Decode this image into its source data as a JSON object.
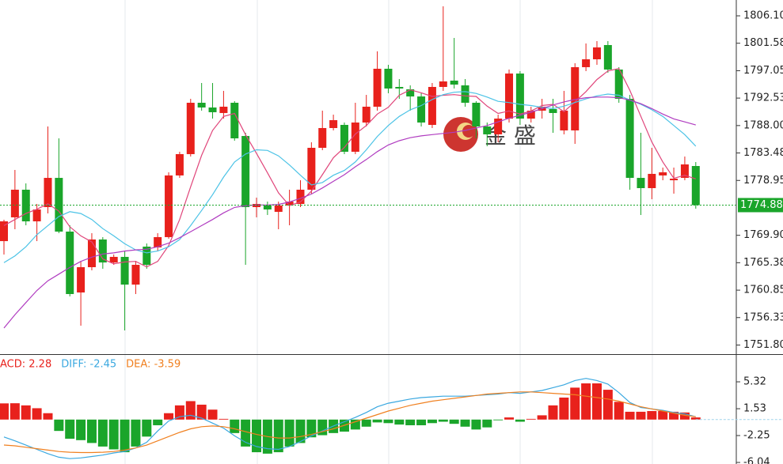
{
  "chart_data": [
    {
      "type": "candlestick",
      "up_color": "#e8211c",
      "down_color": "#1aa52a",
      "open": [
        1768.94,
        1772.86,
        1777.42,
        1772.2,
        1774.55,
        1779.37,
        1770.51,
        1760.47,
        1764.64,
        1769.21,
        1765.42,
        1766.34,
        1761.77,
        1768.03,
        1767.9,
        1769.6,
        1779.77,
        1783.29,
        1791.76,
        1790.98,
        1790.07,
        1791.76,
        1786.28,
        1774.55,
        1774.81,
        1773.77,
        1774.81,
        1775.07,
        1777.42,
        1784.33,
        1787.59,
        1788.11,
        1783.68,
        1788.5,
        1791.11,
        1797.37,
        1794.37,
        1793.98,
        1792.8,
        1788.11,
        1794.37,
        1795.41,
        1794.63,
        1791.76,
        1787.85,
        1786.55,
        1789.15,
        1796.58,
        1789.15,
        1790.46,
        1790.72,
        1787.2,
        1787.2,
        1797.63,
        1798.93,
        1801.28,
        1797.24,
        1792.41,
        1779.37,
        1777.68,
        1779.77,
        1778.98,
        1779.37,
        1781.33
      ],
      "high": [
        1772.46,
        1780.68,
        1778.46,
        1775.07,
        1787.85,
        1785.89,
        1771.55,
        1765.68,
        1770.25,
        1769.6,
        1766.73,
        1767.25,
        1765.68,
        1768.55,
        1770.25,
        1780.29,
        1783.68,
        1792.41,
        1795.02,
        1795.02,
        1793.72,
        1792.02,
        1786.81,
        1776.11,
        1775.46,
        1775.46,
        1777.42,
        1778.98,
        1785.24,
        1790.46,
        1789.8,
        1788.5,
        1791.76,
        1793.06,
        1800.24,
        1798.02,
        1795.67,
        1794.63,
        1793.33,
        1795.02,
        1807.67,
        1802.45,
        1795.67,
        1792.02,
        1788.5,
        1789.8,
        1797.24,
        1796.98,
        1791.11,
        1792.41,
        1792.41,
        1793.72,
        1798.28,
        1801.54,
        1801.93,
        1801.93,
        1797.63,
        1793.06,
        1786.81,
        1784.33,
        1781.07,
        1781.07,
        1782.89,
        1781.98
      ],
      "low": [
        1766.73,
        1770.9,
        1771.55,
        1768.94,
        1773.51,
        1770.25,
        1759.82,
        1754.99,
        1764.12,
        1764.38,
        1765.03,
        1754.21,
        1760.21,
        1764.38,
        1767.25,
        1769.34,
        1779.37,
        1782.89,
        1790.46,
        1789.15,
        1789.15,
        1785.5,
        1765.03,
        1772.86,
        1773.25,
        1770.9,
        1771.55,
        1774.55,
        1776.77,
        1783.94,
        1787.2,
        1783.29,
        1783.29,
        1787.85,
        1790.46,
        1793.33,
        1792.41,
        1790.46,
        1787.85,
        1787.59,
        1793.72,
        1794.11,
        1791.11,
        1785.89,
        1784.59,
        1785.24,
        1788.5,
        1788.11,
        1788.5,
        1789.15,
        1786.81,
        1786.55,
        1784.98,
        1796.98,
        1798.02,
        1796.71,
        1791.76,
        1777.42,
        1773.25,
        1775.85,
        1778.98,
        1776.77,
        1778.98,
        1774.29
      ],
      "close": [
        1772.2,
        1777.42,
        1772.2,
        1774.16,
        1779.37,
        1770.51,
        1760.21,
        1764.64,
        1769.21,
        1765.42,
        1766.34,
        1761.77,
        1765.03,
        1765.03,
        1769.6,
        1779.77,
        1783.29,
        1791.76,
        1790.98,
        1790.2,
        1791.11,
        1785.89,
        1774.55,
        1775.07,
        1774.16,
        1774.81,
        1775.46,
        1777.42,
        1784.33,
        1787.59,
        1788.89,
        1783.68,
        1788.5,
        1791.11,
        1797.37,
        1794.11,
        1794.11,
        1792.8,
        1788.5,
        1794.37,
        1795.28,
        1794.76,
        1791.76,
        1787.85,
        1786.55,
        1789.15,
        1796.58,
        1789.15,
        1790.46,
        1791.11,
        1790.07,
        1790.46,
        1797.63,
        1798.93,
        1800.89,
        1797.24,
        1792.41,
        1779.37,
        1777.68,
        1780.03,
        1780.29,
        1779.24,
        1781.59,
        1774.88
      ],
      "series": [
        {
          "color": "#e0457a",
          "values": [
            1771.5,
            1772.5,
            1773.5,
            1774.2,
            1775.1,
            1773.9,
            1771.3,
            1769.8,
            1768.8,
            1766.0,
            1765.2,
            1765.5,
            1765.6,
            1764.7,
            1765.6,
            1768.2,
            1772.5,
            1777.9,
            1783.1,
            1787.2,
            1789.5,
            1790.0,
            1786.5,
            1783.4,
            1780.2,
            1776.9,
            1774.8,
            1775.4,
            1777.2,
            1779.9,
            1782.7,
            1784.4,
            1786.6,
            1788.0,
            1789.9,
            1791.0,
            1793.0,
            1793.9,
            1793.4,
            1792.8,
            1793.0,
            1793.1,
            1792.9,
            1792.8,
            1791.2,
            1790.0,
            1790.4,
            1789.9,
            1790.4,
            1791.3,
            1791.5,
            1790.3,
            1791.9,
            1793.6,
            1795.6,
            1797.0,
            1797.4,
            1793.8,
            1789.5,
            1785.3,
            1782.0,
            1779.3,
            1779.8,
            1779.2
          ]
        },
        {
          "color": "#4cc3e6",
          "values": [
            1765.4,
            1766.5,
            1768.0,
            1770.0,
            1771.5,
            1773.0,
            1773.8,
            1773.5,
            1772.5,
            1771.0,
            1769.8,
            1768.5,
            1767.5,
            1767.0,
            1767.3,
            1768.0,
            1769.2,
            1771.5,
            1774.0,
            1776.6,
            1779.5,
            1782.0,
            1783.3,
            1784.0,
            1783.9,
            1783.0,
            1781.5,
            1779.8,
            1778.2,
            1778.6,
            1779.8,
            1780.6,
            1782.0,
            1784.0,
            1786.2,
            1788.0,
            1789.5,
            1790.6,
            1791.3,
            1792.3,
            1793.1,
            1793.5,
            1793.6,
            1793.3,
            1792.7,
            1792.0,
            1791.8,
            1791.5,
            1791.3,
            1791.0,
            1790.8,
            1791.2,
            1791.8,
            1792.4,
            1792.9,
            1793.2,
            1793.0,
            1792.2,
            1791.5,
            1790.6,
            1789.5,
            1788.0,
            1786.5,
            1784.6
          ]
        },
        {
          "color": "#b03cc0",
          "values": [
            1754.6,
            1756.8,
            1758.8,
            1760.8,
            1762.4,
            1763.5,
            1764.6,
            1765.6,
            1766.3,
            1766.8,
            1767.0,
            1767.3,
            1767.5,
            1767.6,
            1768.0,
            1768.6,
            1769.5,
            1770.5,
            1771.5,
            1772.5,
            1773.6,
            1774.5,
            1774.8,
            1774.9,
            1774.9,
            1775.0,
            1775.4,
            1776.0,
            1776.7,
            1777.7,
            1778.8,
            1779.9,
            1781.2,
            1782.4,
            1783.7,
            1784.8,
            1785.5,
            1786.0,
            1786.3,
            1786.5,
            1786.7,
            1786.9,
            1787.2,
            1787.6,
            1788.0,
            1788.6,
            1789.2,
            1789.7,
            1790.2,
            1790.8,
            1791.4,
            1791.9,
            1792.3,
            1792.6,
            1792.7,
            1792.7,
            1792.6,
            1792.2,
            1791.6,
            1790.8,
            1789.9,
            1789.1,
            1788.6,
            1788.1
          ]
        }
      ],
      "last_price": {
        "value": 1774.88,
        "label": "1774.88"
      },
      "ylim": [
        1750.3,
        1808.71
      ],
      "yticks": [
        {
          "value": 1806.1,
          "label": "1806.10"
        },
        {
          "value": 1801.58,
          "label": "1801.58"
        },
        {
          "value": 1797.05,
          "label": "1797.05"
        },
        {
          "value": 1792.53,
          "label": "1792.53"
        },
        {
          "value": 1788.0,
          "label": "1788.00"
        },
        {
          "value": 1783.48,
          "label": "1783.48"
        },
        {
          "value": 1778.95,
          "label": "1778.95"
        },
        {
          "value": 1769.9,
          "label": "1769.90"
        },
        {
          "value": 1765.38,
          "label": "1765.38"
        },
        {
          "value": 1760.85,
          "label": "1760.85"
        },
        {
          "value": 1756.33,
          "label": "1756.33"
        },
        {
          "value": 1751.8,
          "label": "1751.80"
        }
      ],
      "watermark": "金  盛"
    },
    {
      "type": "macd",
      "legend": [
        {
          "label": "ACD: 2.28",
          "color": "#e8211c"
        },
        {
          "label": "DIFF: -2.45",
          "color": "#3aa8e0"
        },
        {
          "label": "DEA: -3.59",
          "color": "#f08020"
        }
      ],
      "up_color": "#e8211c",
      "down_color": "#1aa52a",
      "values": [
        2.28,
        2.3,
        2.0,
        1.6,
        0.9,
        -1.6,
        -2.7,
        -2.9,
        -3.3,
        -3.8,
        -4.2,
        -4.6,
        -3.8,
        -2.4,
        -0.8,
        0.9,
        2.0,
        2.6,
        2.1,
        1.4,
        0.1,
        -1.9,
        -3.8,
        -4.6,
        -4.8,
        -4.6,
        -3.8,
        -3.3,
        -2.5,
        -2.2,
        -1.9,
        -1.7,
        -1.4,
        -1.0,
        -0.4,
        -0.5,
        -0.7,
        -0.8,
        -0.8,
        -0.5,
        -0.3,
        -0.6,
        -1.0,
        -1.4,
        -1.1,
        -0.1,
        0.3,
        -0.3,
        0.1,
        0.6,
        2.0,
        3.1,
        4.5,
        5.1,
        5.1,
        4.2,
        2.5,
        1.1,
        1.1,
        1.2,
        1.2,
        1.1,
        1.0,
        0.3
      ],
      "series": [
        {
          "color": "#3aa8e0",
          "values": [
            -2.45,
            -3.0,
            -3.6,
            -4.2,
            -4.8,
            -5.3,
            -5.5,
            -5.4,
            -5.2,
            -5.0,
            -4.7,
            -4.5,
            -4.0,
            -3.2,
            -1.6,
            -0.2,
            0.4,
            0.6,
            0.2,
            -0.5,
            -1.2,
            -2.3,
            -3.2,
            -3.8,
            -4.1,
            -4.2,
            -3.8,
            -3.1,
            -2.3,
            -1.6,
            -0.9,
            -0.3,
            0.3,
            1.0,
            1.8,
            2.3,
            2.6,
            2.9,
            3.1,
            3.2,
            3.3,
            3.3,
            3.3,
            3.4,
            3.5,
            3.6,
            3.8,
            3.7,
            3.9,
            4.1,
            4.5,
            4.9,
            5.5,
            5.8,
            5.5,
            5.0,
            3.8,
            2.4,
            1.7,
            1.5,
            1.3,
            1.0,
            0.8,
            0.4
          ]
        },
        {
          "color": "#f08020",
          "values": [
            -3.59,
            -3.7,
            -3.9,
            -4.1,
            -4.3,
            -4.5,
            -4.6,
            -4.65,
            -4.65,
            -4.6,
            -4.5,
            -4.3,
            -4.0,
            -3.6,
            -3.0,
            -2.4,
            -1.8,
            -1.3,
            -1.0,
            -0.9,
            -1.0,
            -1.3,
            -1.7,
            -2.1,
            -2.4,
            -2.6,
            -2.6,
            -2.4,
            -2.1,
            -1.7,
            -1.3,
            -0.8,
            -0.3,
            0.2,
            0.7,
            1.2,
            1.6,
            2.0,
            2.3,
            2.6,
            2.8,
            3.0,
            3.2,
            3.4,
            3.6,
            3.7,
            3.8,
            3.9,
            3.9,
            3.8,
            3.7,
            3.6,
            3.5,
            3.3,
            3.1,
            2.9,
            2.6,
            2.2,
            1.8,
            1.5,
            1.2,
            0.9,
            0.6,
            0.4
          ]
        }
      ],
      "ylim": [
        -6.26,
        9.11
      ],
      "yticks": [
        5.32,
        1.53,
        -2.25,
        -6.04
      ]
    }
  ]
}
